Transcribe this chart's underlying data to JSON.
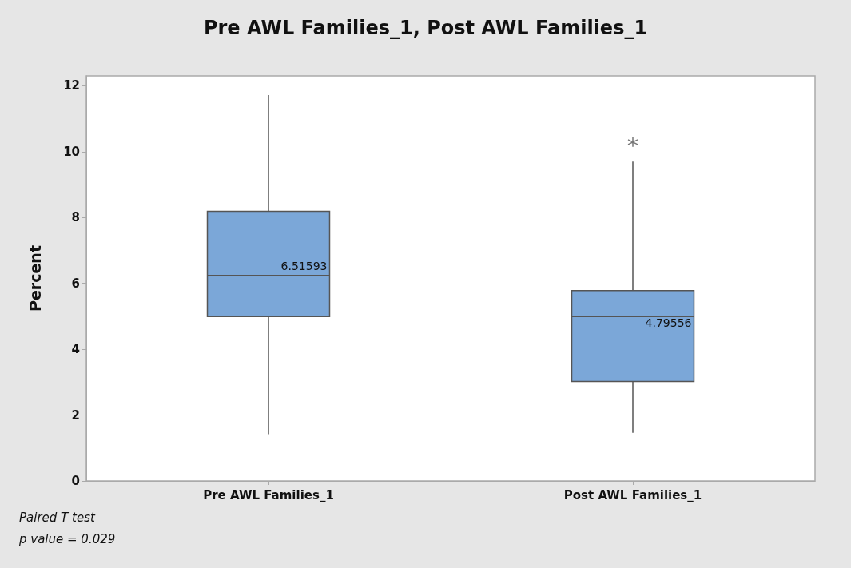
{
  "chart_data": {
    "type": "box",
    "title": "Pre AWL Families_1, Post AWL Families_1",
    "ylabel": "Percent",
    "categories": [
      "Pre AWL Families_1",
      "Post AWL Families_1"
    ],
    "boxes": [
      {
        "low": 1.42,
        "q1": 4.99,
        "median": 6.24,
        "q3": 8.19,
        "high": 11.72
      },
      {
        "low": 1.46,
        "q1": 3.02,
        "median": 4.99,
        "q3": 5.78,
        "high": 9.7,
        "outliers": [
          10.29
        ]
      }
    ],
    "color": "#7ba7d8",
    "ylim": [
      0,
      12.3
    ],
    "yticks": [
      0,
      2,
      4,
      6,
      8,
      10,
      12
    ],
    "grid": false,
    "annotations": [
      "6.51593",
      "4.79556",
      "Paired T test",
      "p value = 0.029"
    ]
  }
}
